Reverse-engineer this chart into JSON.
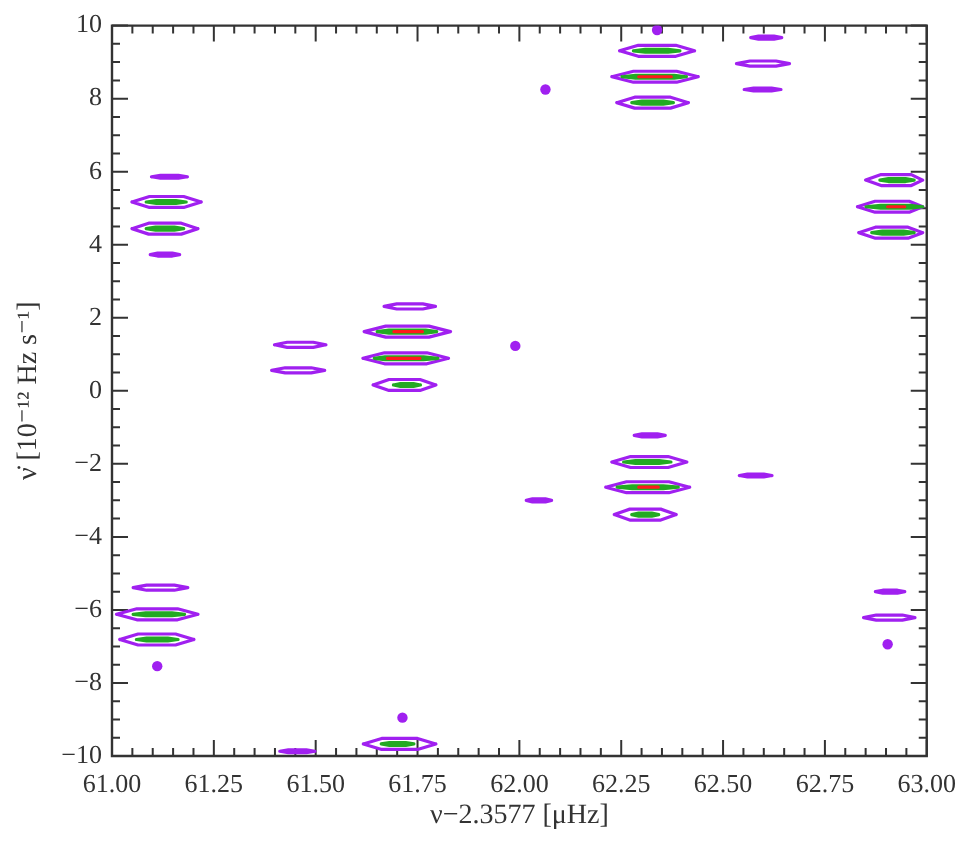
{
  "chart_data": {
    "type": "line",
    "xlabel": "ν−2.3577 [μHz]",
    "ylabel": "ν̇ [10⁻¹² Hz s⁻¹]",
    "xlim": [
      61,
      63
    ],
    "ylim": [
      -10,
      10
    ],
    "xticks": [
      {
        "value": 61,
        "label": "61.00"
      },
      {
        "value": 61.05,
        "label": null
      },
      {
        "value": 61.1,
        "label": null
      },
      {
        "value": 61.15,
        "label": null
      },
      {
        "value": 61.2,
        "label": null
      },
      {
        "value": 61.25,
        "label": "61.25"
      },
      {
        "value": 61.3,
        "label": null
      },
      {
        "value": 61.35,
        "label": null
      },
      {
        "value": 61.4,
        "label": null
      },
      {
        "value": 61.45,
        "label": null
      },
      {
        "value": 61.5,
        "label": "61.50"
      },
      {
        "value": 61.55,
        "label": null
      },
      {
        "value": 61.6,
        "label": null
      },
      {
        "value": 61.65,
        "label": null
      },
      {
        "value": 61.7,
        "label": null
      },
      {
        "value": 61.75,
        "label": "61.75"
      },
      {
        "value": 61.8,
        "label": null
      },
      {
        "value": 61.85,
        "label": null
      },
      {
        "value": 61.9,
        "label": null
      },
      {
        "value": 61.95,
        "label": null
      },
      {
        "value": 62,
        "label": "62.00"
      },
      {
        "value": 62.05,
        "label": null
      },
      {
        "value": 62.1,
        "label": null
      },
      {
        "value": 62.15,
        "label": null
      },
      {
        "value": 62.2,
        "label": null
      },
      {
        "value": 62.25,
        "label": "62.25"
      },
      {
        "value": 62.3,
        "label": null
      },
      {
        "value": 62.35,
        "label": null
      },
      {
        "value": 62.4,
        "label": null
      },
      {
        "value": 62.45,
        "label": null
      },
      {
        "value": 62.5,
        "label": "62.50"
      },
      {
        "value": 62.55,
        "label": null
      },
      {
        "value": 62.6,
        "label": null
      },
      {
        "value": 62.65,
        "label": null
      },
      {
        "value": 62.7,
        "label": null
      },
      {
        "value": 62.75,
        "label": "62.75"
      },
      {
        "value": 62.8,
        "label": null
      },
      {
        "value": 62.85,
        "label": null
      },
      {
        "value": 62.9,
        "label": null
      },
      {
        "value": 62.95,
        "label": null
      },
      {
        "value": 63,
        "label": "63.00"
      }
    ],
    "yticks": [
      {
        "value": -10,
        "label": "−10"
      },
      {
        "value": -9.5,
        "label": null
      },
      {
        "value": -9,
        "label": null
      },
      {
        "value": -8.5,
        "label": null
      },
      {
        "value": -8,
        "label": "−8"
      },
      {
        "value": -7.5,
        "label": null
      },
      {
        "value": -7,
        "label": null
      },
      {
        "value": -6.5,
        "label": null
      },
      {
        "value": -6,
        "label": "−6"
      },
      {
        "value": -5.5,
        "label": null
      },
      {
        "value": -5,
        "label": null
      },
      {
        "value": -4.5,
        "label": null
      },
      {
        "value": -4,
        "label": "−4"
      },
      {
        "value": -3.5,
        "label": null
      },
      {
        "value": -3,
        "label": null
      },
      {
        "value": -2.5,
        "label": null
      },
      {
        "value": -2,
        "label": "−2"
      },
      {
        "value": -1.5,
        "label": null
      },
      {
        "value": -1,
        "label": null
      },
      {
        "value": -0.5,
        "label": null
      },
      0,
      {
        "value": 0.5,
        "label": null
      },
      {
        "value": 1,
        "label": null
      },
      {
        "value": 1.5,
        "label": null
      },
      2,
      {
        "value": 2.5,
        "label": null
      },
      {
        "value": 3,
        "label": null
      },
      {
        "value": 3.5,
        "label": null
      },
      4,
      {
        "value": 4.5,
        "label": null
      },
      {
        "value": 5,
        "label": null
      },
      {
        "value": 5.5,
        "label": null
      },
      6,
      {
        "value": 6.5,
        "label": null
      },
      {
        "value": 7,
        "label": null
      },
      {
        "value": 7.5,
        "label": null
      },
      8,
      {
        "value": 8.5,
        "label": null
      },
      {
        "value": 9,
        "label": null
      },
      {
        "value": 9.5,
        "label": null
      },
      10
    ],
    "series": [
      {
        "color": "#a020f0",
        "x": [
          61.097,
          61.119,
          61.163,
          61.185,
          null,
          61.097,
          61.119,
          61.163,
          61.185,
          null,
          61.049,
          61.092,
          61.176,
          61.219,
          null,
          61.049,
          61.092,
          61.176,
          61.219,
          null,
          61.049,
          61.09,
          61.17,
          61.211,
          null,
          61.049,
          61.09,
          61.17,
          61.211,
          null,
          61.094,
          61.112,
          61.148,
          61.166,
          null,
          61.094,
          61.112,
          61.148,
          61.166,
          null,
          61.399,
          61.43,
          61.494,
          61.525,
          null,
          61.399,
          61.43,
          61.494,
          61.525,
          null,
          61.392,
          61.425,
          61.489,
          61.522,
          null,
          61.392,
          61.425,
          61.489,
          61.522,
          null,
          61.668,
          61.699,
          61.763,
          61.794,
          null,
          61.668,
          61.699,
          61.763,
          61.794,
          null,
          61.619,
          61.672,
          61.778,
          61.831,
          null,
          61.619,
          61.672,
          61.778,
          61.831,
          null,
          61.616,
          61.669,
          61.773,
          61.826,
          null,
          61.616,
          61.669,
          61.773,
          61.826,
          null,
          61.641,
          61.68,
          61.756,
          61.795,
          null,
          61.641,
          61.68,
          61.756,
          61.795,
          null,
          62.017,
          62.032,
          62.064,
          62.079,
          null,
          62.017,
          62.032,
          62.064,
          62.079,
          null,
          62.246,
          62.292,
          62.384,
          62.43,
          null,
          62.246,
          62.292,
          62.384,
          62.43,
          null,
          62.227,
          62.28,
          62.386,
          62.439,
          null,
          62.227,
          62.28,
          62.386,
          62.439,
          null,
          62.239,
          62.283,
          62.371,
          62.415,
          null,
          62.239,
          62.283,
          62.371,
          62.415,
          null,
          62.282,
          62.301,
          62.339,
          62.358,
          null,
          62.282,
          62.301,
          62.339,
          62.358,
          null,
          62.227,
          62.273,
          62.365,
          62.411,
          null,
          62.227,
          62.273,
          62.365,
          62.411,
          null,
          62.212,
          62.263,
          62.367,
          62.418,
          null,
          62.212,
          62.263,
          62.367,
          62.418,
          null,
          62.233,
          62.271,
          62.347,
          62.385,
          null,
          62.233,
          62.271,
          62.347,
          62.385,
          null,
          62.568,
          62.587,
          62.625,
          62.644,
          null,
          62.568,
          62.587,
          62.625,
          62.644,
          null,
          62.533,
          62.566,
          62.63,
          62.663,
          null,
          62.533,
          62.566,
          62.63,
          62.663,
          null,
          62.552,
          62.575,
          62.619,
          62.642,
          null,
          62.552,
          62.575,
          62.619,
          62.642,
          null,
          62.54,
          62.56,
          62.6,
          62.62,
          null,
          62.54,
          62.56,
          62.6,
          62.62,
          null,
          62.85,
          62.888,
          62.962,
          62.99,
          null,
          62.85,
          62.888,
          62.962,
          62.99,
          null,
          62.83,
          62.873,
          62.957,
          62.99,
          null,
          62.83,
          62.873,
          62.957,
          62.99,
          null,
          62.833,
          62.874,
          62.954,
          62.99,
          null,
          62.833,
          62.874,
          62.954,
          62.99,
          null,
          62.874,
          62.892,
          62.928,
          62.946,
          null,
          62.874,
          62.892,
          62.928,
          62.946,
          null,
          62.845,
          62.876,
          62.94,
          62.971,
          null,
          62.845,
          62.876,
          62.94,
          62.971,
          null,
          61.052,
          61.085,
          61.153,
          61.186,
          null,
          61.052,
          61.085,
          61.153,
          61.186,
          null,
          61.011,
          61.061,
          61.161,
          61.211,
          null,
          61.011,
          61.061,
          61.161,
          61.211,
          null,
          61.019,
          61.064,
          61.156,
          61.201,
          null,
          61.019,
          61.064,
          61.156,
          61.201,
          null,
          61.412,
          61.433,
          61.477,
          61.498,
          null,
          61.412,
          61.433,
          61.477,
          61.498,
          null,
          61.617,
          61.662,
          61.75,
          61.795,
          null,
          61.617,
          61.662,
          61.75,
          61.795
        ],
        "values": [
          5.86,
          5.9,
          5.9,
          5.86,
          null,
          5.86,
          5.82,
          5.82,
          5.86,
          null,
          5.17,
          5.32,
          5.32,
          5.17,
          null,
          5.17,
          5.02,
          5.02,
          5.17,
          null,
          4.44,
          4.59,
          4.59,
          4.44,
          null,
          4.44,
          4.29,
          4.29,
          4.44,
          null,
          3.73,
          3.77,
          3.77,
          3.73,
          null,
          3.73,
          3.69,
          3.69,
          3.73,
          null,
          1.26,
          1.33,
          1.33,
          1.26,
          null,
          1.26,
          1.19,
          1.19,
          1.26,
          null,
          0.56,
          0.63,
          0.63,
          0.56,
          null,
          0.56,
          0.49,
          0.49,
          0.56,
          null,
          2.31,
          2.38,
          2.38,
          2.31,
          null,
          2.31,
          2.24,
          2.24,
          2.31,
          null,
          1.62,
          1.77,
          1.77,
          1.62,
          null,
          1.62,
          1.47,
          1.47,
          1.62,
          null,
          0.89,
          1.04,
          1.04,
          0.89,
          null,
          0.89,
          0.74,
          0.74,
          0.89,
          null,
          0.16,
          0.31,
          0.31,
          0.16,
          null,
          0.16,
          0.01,
          0.01,
          0.16,
          null,
          -3.0,
          -2.96,
          -2.96,
          -3.0,
          null,
          -3.0,
          -3.04,
          -3.04,
          -3.0,
          null,
          9.31,
          9.46,
          9.46,
          9.31,
          null,
          9.31,
          9.16,
          9.16,
          9.31,
          null,
          8.6,
          8.75,
          8.75,
          8.6,
          null,
          8.6,
          8.45,
          8.45,
          8.6,
          null,
          7.89,
          8.04,
          8.04,
          7.89,
          null,
          7.89,
          7.74,
          7.74,
          7.89,
          null,
          -1.22,
          -1.18,
          -1.18,
          -1.22,
          null,
          -1.22,
          -1.26,
          -1.26,
          -1.22,
          null,
          -1.95,
          -1.8,
          -1.8,
          -1.95,
          null,
          -1.95,
          -2.1,
          -2.1,
          -1.95,
          null,
          -2.64,
          -2.49,
          -2.49,
          -2.64,
          null,
          -2.64,
          -2.79,
          -2.79,
          -2.64,
          null,
          -3.39,
          -3.24,
          -3.24,
          -3.39,
          null,
          -3.39,
          -3.54,
          -3.54,
          -3.39,
          null,
          9.67,
          9.71,
          9.71,
          9.67,
          null,
          9.67,
          9.63,
          9.63,
          9.67,
          null,
          8.96,
          9.03,
          9.03,
          8.96,
          null,
          8.96,
          8.89,
          8.89,
          8.96,
          null,
          8.25,
          8.29,
          8.29,
          8.25,
          null,
          8.25,
          8.21,
          8.21,
          8.25,
          null,
          -2.32,
          -2.28,
          -2.28,
          -2.32,
          null,
          -2.32,
          -2.36,
          -2.36,
          -2.32,
          null,
          5.77,
          5.92,
          5.92,
          5.77,
          null,
          5.77,
          5.62,
          5.62,
          5.77,
          null,
          5.04,
          5.19,
          5.19,
          5.04,
          null,
          5.04,
          4.89,
          4.89,
          5.04,
          null,
          4.33,
          4.48,
          4.48,
          4.33,
          null,
          4.33,
          4.18,
          4.18,
          4.33,
          null,
          -5.5,
          -5.46,
          -5.46,
          -5.5,
          null,
          -5.5,
          -5.54,
          -5.54,
          -5.5,
          null,
          -6.21,
          -6.14,
          -6.14,
          -6.21,
          null,
          -6.21,
          -6.28,
          -6.28,
          -6.21,
          null,
          -5.39,
          -5.32,
          -5.32,
          -5.39,
          null,
          -5.39,
          -5.46,
          -5.46,
          -5.39,
          null,
          -6.12,
          -5.97,
          -5.97,
          -6.12,
          null,
          -6.12,
          -6.27,
          -6.27,
          -6.12,
          null,
          -6.81,
          -6.66,
          -6.66,
          -6.81,
          null,
          -6.81,
          -6.96,
          -6.96,
          -6.81,
          null,
          -9.87,
          -9.83,
          -9.83,
          -9.87,
          null,
          -9.87,
          -9.91,
          -9.91,
          -9.87,
          null,
          -9.67,
          -9.52,
          -9.52,
          -9.67,
          null,
          -9.67,
          -9.82,
          -9.82,
          -9.67
        ]
      },
      {
        "type": "scatter",
        "marker": "circle",
        "color": "#a020f0",
        "x": [
          62.064,
          61.99,
          62.338,
          62.904,
          61.111,
          61.713
        ],
        "values": [
          8.25,
          1.23,
          9.88,
          -6.94,
          -7.54,
          -8.95
        ]
      },
      {
        "color": "#22aa22",
        "x": [
          61.084,
          61.109,
          61.157,
          61.182,
          null,
          61.084,
          61.109,
          61.157,
          61.182,
          null,
          61.084,
          61.107,
          61.153,
          61.176,
          null,
          61.084,
          61.107,
          61.153,
          61.176,
          null,
          61.651,
          61.68,
          61.77,
          61.797,
          null,
          61.651,
          61.68,
          61.77,
          61.797,
          null,
          61.644,
          61.67,
          61.765,
          61.8,
          null,
          61.644,
          61.67,
          61.765,
          61.8,
          null,
          61.691,
          61.708,
          61.74,
          61.757,
          null,
          61.691,
          61.708,
          61.74,
          61.757,
          null,
          62.28,
          62.309,
          62.365,
          62.394,
          null,
          62.28,
          62.309,
          62.365,
          62.394,
          null,
          62.252,
          62.285,
          62.38,
          62.41,
          null,
          62.252,
          62.285,
          62.38,
          62.41,
          null,
          62.276,
          62.301,
          62.353,
          62.378,
          null,
          62.276,
          62.301,
          62.353,
          62.378,
          null,
          62.256,
          62.285,
          62.343,
          62.372,
          null,
          62.256,
          62.285,
          62.343,
          62.372,
          null,
          62.24,
          62.277,
          62.353,
          62.39,
          null,
          62.24,
          62.277,
          62.353,
          62.39,
          null,
          62.276,
          62.293,
          62.325,
          62.342,
          null,
          62.276,
          62.293,
          62.325,
          62.342,
          null,
          62.885,
          62.906,
          62.948,
          62.969,
          null,
          62.885,
          62.906,
          62.948,
          62.969,
          null,
          62.851,
          62.887,
          62.959,
          62.99,
          null,
          62.851,
          62.887,
          62.959,
          62.99,
          null,
          62.865,
          62.891,
          62.943,
          62.969,
          null,
          62.865,
          62.891,
          62.943,
          62.969,
          null,
          61.052,
          61.083,
          61.147,
          61.178,
          null,
          61.052,
          61.083,
          61.147,
          61.178,
          null,
          61.06,
          61.085,
          61.137,
          61.162,
          null,
          61.06,
          61.085,
          61.137,
          61.162,
          null,
          61.661,
          61.681,
          61.721,
          61.741,
          null,
          61.661,
          61.681,
          61.721,
          61.741
        ],
        "values": [
          5.17,
          5.21,
          5.21,
          5.17,
          null,
          5.17,
          5.13,
          5.13,
          5.17,
          null,
          4.44,
          4.48,
          4.48,
          4.44,
          null,
          4.44,
          4.4,
          4.4,
          4.44,
          null,
          1.62,
          1.66,
          1.66,
          1.62,
          null,
          1.62,
          1.58,
          1.58,
          1.62,
          null,
          0.89,
          0.93,
          0.93,
          0.89,
          null,
          0.89,
          0.85,
          0.85,
          0.89,
          null,
          0.16,
          0.2,
          0.2,
          0.16,
          null,
          0.16,
          0.12,
          0.12,
          0.16,
          null,
          9.31,
          9.35,
          9.35,
          9.31,
          null,
          9.31,
          9.27,
          9.27,
          9.31,
          null,
          8.6,
          8.64,
          8.64,
          8.6,
          null,
          8.6,
          8.56,
          8.56,
          8.6,
          null,
          7.89,
          7.93,
          7.93,
          7.89,
          null,
          7.89,
          7.85,
          7.85,
          7.89,
          null,
          -1.95,
          -1.91,
          -1.91,
          -1.95,
          null,
          -1.95,
          -1.99,
          -1.99,
          -1.95,
          null,
          -2.64,
          -2.6,
          -2.6,
          -2.64,
          null,
          -2.64,
          -2.68,
          -2.68,
          -2.64,
          null,
          -3.39,
          -3.35,
          -3.35,
          -3.39,
          null,
          -3.39,
          -3.43,
          -3.43,
          -3.39,
          null,
          5.77,
          5.81,
          5.81,
          5.77,
          null,
          5.77,
          5.73,
          5.73,
          5.77,
          null,
          5.04,
          5.08,
          5.08,
          5.04,
          null,
          5.04,
          5.0,
          5.0,
          5.04,
          null,
          4.33,
          4.37,
          4.37,
          4.33,
          null,
          4.33,
          4.29,
          4.29,
          4.33,
          null,
          -6.12,
          -6.08,
          -6.08,
          -6.12,
          null,
          -6.12,
          -6.16,
          -6.16,
          -6.12,
          null,
          -6.81,
          -6.77,
          -6.77,
          -6.81,
          null,
          -6.81,
          -6.85,
          -6.85,
          -6.81,
          null,
          -9.67,
          -9.63,
          -9.63,
          -9.67,
          null,
          -9.67,
          -9.71,
          -9.71,
          -9.67
        ]
      },
      {
        "color": "#ff1a1a",
        "x": [
          61.692,
          61.727,
          61.762,
          null,
          61.676,
          61.716,
          61.756,
          null,
          62.293,
          62.333,
          62.373,
          null,
          62.293,
          62.317,
          62.341,
          null,
          62.904,
          62.925,
          62.946
        ],
        "values": [
          1.62,
          1.62,
          1.62,
          null,
          0.89,
          0.89,
          0.89,
          null,
          8.6,
          8.6,
          8.6,
          null,
          -2.64,
          -2.64,
          -2.64,
          null,
          5.04,
          5.04,
          5.04
        ]
      }
    ]
  }
}
